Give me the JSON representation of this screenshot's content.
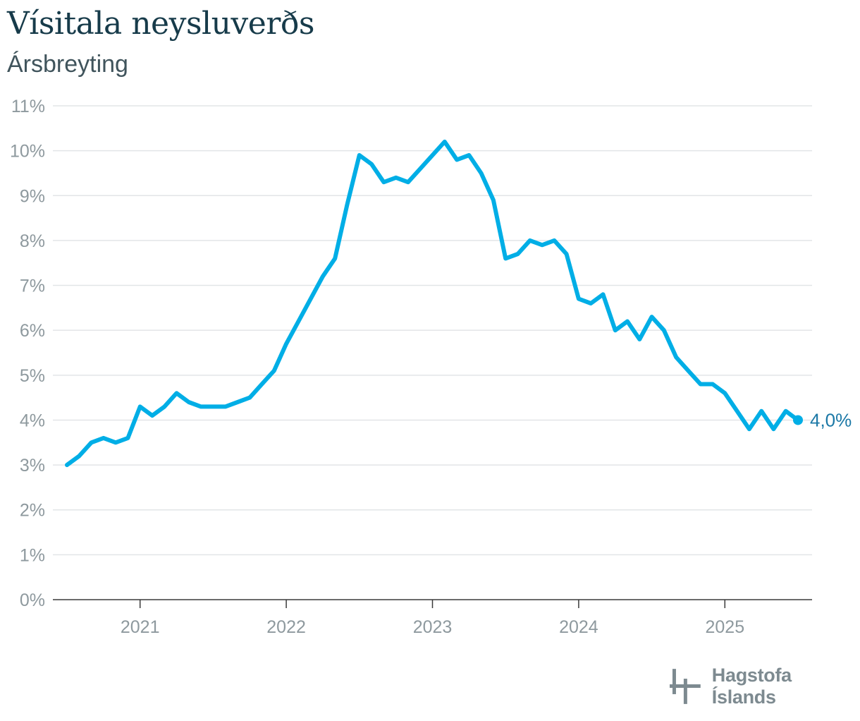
{
  "header": {
    "title": "Vísitala neysluverðs",
    "subtitle": "Ársbreyting"
  },
  "brand": {
    "name": "Hagstofa Íslands",
    "logo_icon": "hagstofa-logo-icon",
    "logo_color": "#7d8a90"
  },
  "chart_data": {
    "type": "line",
    "title": "Vísitala neysluverðs",
    "subtitle": "Ársbreyting",
    "xlabel": "",
    "ylabel": "",
    "ylim": [
      0,
      11
    ],
    "yticks": [
      "0%",
      "1%",
      "2%",
      "3%",
      "4%",
      "5%",
      "6%",
      "7%",
      "8%",
      "9%",
      "10%",
      "11%"
    ],
    "xticks": [
      "2021",
      "2022",
      "2023",
      "2024",
      "2025"
    ],
    "grid": true,
    "line_color": "#00aee6",
    "end_label": "4,0%",
    "series": [
      {
        "x": [
          "2020-07",
          "2020-08",
          "2020-09",
          "2020-10",
          "2020-11",
          "2020-12",
          "2021-01",
          "2021-02",
          "2021-03",
          "2021-04",
          "2021-05",
          "2021-06",
          "2021-07",
          "2021-08",
          "2021-09",
          "2021-10",
          "2021-11",
          "2021-12",
          "2022-01",
          "2022-02",
          "2022-03",
          "2022-04",
          "2022-05",
          "2022-06",
          "2022-07",
          "2022-08",
          "2022-09",
          "2022-10",
          "2022-11",
          "2022-12",
          "2023-01",
          "2023-02",
          "2023-03",
          "2023-04",
          "2023-05",
          "2023-06",
          "2023-07",
          "2023-08",
          "2023-09",
          "2023-10",
          "2023-11",
          "2023-12",
          "2024-01",
          "2024-02",
          "2024-03",
          "2024-04",
          "2024-05",
          "2024-06",
          "2024-07",
          "2024-08",
          "2024-09",
          "2024-10",
          "2024-11",
          "2024-12",
          "2025-01",
          "2025-02",
          "2025-03",
          "2025-04",
          "2025-05",
          "2025-06",
          "2025-07"
        ],
        "values": [
          3.0,
          3.2,
          3.5,
          3.6,
          3.5,
          3.6,
          4.3,
          4.1,
          4.3,
          4.6,
          4.4,
          4.3,
          4.3,
          4.3,
          4.4,
          4.5,
          4.8,
          5.1,
          5.7,
          6.2,
          6.7,
          7.2,
          7.6,
          8.8,
          9.9,
          9.7,
          9.3,
          9.4,
          9.3,
          9.6,
          9.9,
          10.2,
          9.8,
          9.9,
          9.5,
          8.9,
          7.6,
          7.7,
          8.0,
          7.9,
          8.0,
          7.7,
          6.7,
          6.6,
          6.8,
          6.0,
          6.2,
          5.8,
          6.3,
          6.0,
          5.4,
          5.1,
          4.8,
          4.8,
          4.6,
          4.2,
          3.8,
          4.2,
          3.8,
          4.2,
          4.0
        ]
      }
    ]
  }
}
